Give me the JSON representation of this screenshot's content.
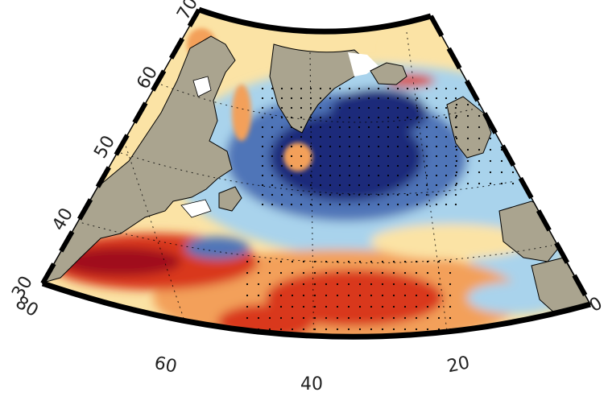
{
  "map": {
    "projection": "conic",
    "region": "North Atlantic",
    "lat_range": [
      30,
      70
    ],
    "lon_range": [
      -80,
      0
    ],
    "latitude_labels": [
      "30",
      "40",
      "50",
      "60",
      "70"
    ],
    "longitude_labels": [
      "80",
      "60",
      "40",
      "20",
      "0"
    ],
    "colormap": "red-white-blue diverging",
    "colors": {
      "land": "#aaa48f",
      "ice": "#ffffff",
      "frame": "#000000",
      "dark_blue": "#1f2c7a",
      "mid_blue": "#4f75b8",
      "light_blue": "#a9d3ec",
      "pale_yellow": "#fbe3a5",
      "orange": "#f3a05a",
      "red": "#d9381f",
      "dark_red": "#a0101a"
    }
  }
}
